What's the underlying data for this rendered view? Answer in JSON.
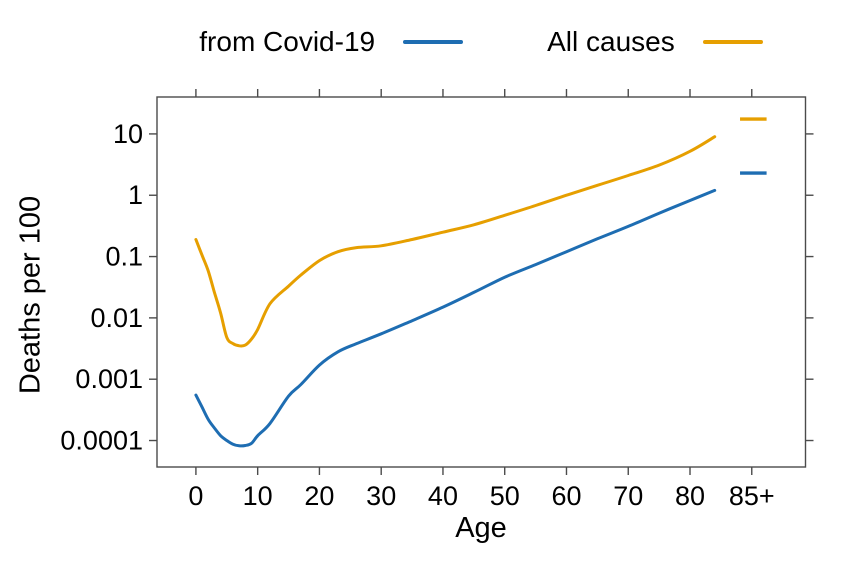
{
  "figure": {
    "background": "#ffffff"
  },
  "chart_data": {
    "type": "line",
    "title": "",
    "xlabel": "Age",
    "ylabel": "Deaths per 100",
    "x_scale": "linear",
    "y_scale": "log",
    "grid": false,
    "legend_position": "top",
    "frame_color": "#4b4b4b",
    "text_color": "#000000",
    "x_range": [
      -6.3,
      98.7
    ],
    "y_range": [
      3.7e-05,
      40
    ],
    "x_ticks": [
      {
        "value": 0,
        "label": "0"
      },
      {
        "value": 10,
        "label": "10"
      },
      {
        "value": 20,
        "label": "20"
      },
      {
        "value": 30,
        "label": "30"
      },
      {
        "value": 40,
        "label": "40"
      },
      {
        "value": 50,
        "label": "50"
      },
      {
        "value": 60,
        "label": "60"
      },
      {
        "value": 70,
        "label": "70"
      },
      {
        "value": 80,
        "label": "80"
      },
      {
        "value": 90,
        "label": "85+"
      }
    ],
    "y_ticks": [
      {
        "value": 10,
        "label": "10"
      },
      {
        "value": 1,
        "label": "1"
      },
      {
        "value": 0.1,
        "label": "0.1"
      },
      {
        "value": 0.01,
        "label": "0.01"
      },
      {
        "value": 0.001,
        "label": "0.001"
      },
      {
        "value": 0.0001,
        "label": "0.0001"
      }
    ],
    "series": [
      {
        "name": "from Covid-19",
        "color": "#1e6db2",
        "x": [
          0,
          1,
          2,
          3,
          4,
          5,
          6,
          7,
          8,
          9,
          10,
          12,
          15,
          17,
          20,
          23,
          26,
          30,
          35,
          40,
          45,
          50,
          55,
          60,
          65,
          70,
          75,
          80,
          84
        ],
        "y": [
          0.00055,
          0.00035,
          0.00022,
          0.00016,
          0.00012,
          0.0001,
          8.7e-05,
          8.2e-05,
          8.3e-05,
          9e-05,
          0.00012,
          0.00019,
          0.00053,
          0.00082,
          0.0017,
          0.0028,
          0.0038,
          0.0055,
          0.009,
          0.015,
          0.026,
          0.046,
          0.074,
          0.12,
          0.195,
          0.31,
          0.51,
          0.82,
          1.2
        ],
        "open_ended_bin": {
          "label": "85+",
          "x": [
            88.1,
            92.4
          ],
          "value": 2.3
        }
      },
      {
        "name": "All causes",
        "color": "#e69f00",
        "x": [
          0,
          1,
          2,
          3,
          4,
          5,
          6,
          7,
          8,
          9,
          10,
          12,
          15,
          17,
          20,
          23,
          26,
          30,
          35,
          40,
          45,
          50,
          55,
          60,
          65,
          70,
          75,
          80,
          84
        ],
        "y": [
          0.19,
          0.105,
          0.058,
          0.026,
          0.012,
          0.0048,
          0.0038,
          0.0035,
          0.0036,
          0.0045,
          0.0065,
          0.017,
          0.033,
          0.05,
          0.086,
          0.12,
          0.14,
          0.15,
          0.19,
          0.25,
          0.33,
          0.47,
          0.68,
          1.0,
          1.45,
          2.1,
          3.1,
          5.2,
          9.0
        ],
        "open_ended_bin": {
          "label": "85+",
          "x": [
            88.1,
            92.4
          ],
          "value": 17.5
        }
      }
    ]
  }
}
